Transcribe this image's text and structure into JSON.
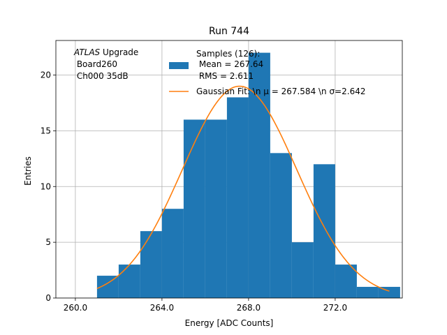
{
  "chart_data": {
    "type": "bar",
    "title": "Run 744",
    "xlabel": "Energy [ADC Counts]",
    "ylabel": "Entries",
    "xlim": [
      259.1,
      275.1
    ],
    "ylim": [
      0,
      23.1
    ],
    "grid": true,
    "xticks": [
      260.0,
      264.0,
      268.0,
      272.0
    ],
    "xtick_labels": [
      "260.0",
      "264.0",
      "268.0",
      "272.0"
    ],
    "yticks": [
      0,
      5,
      10,
      15,
      20
    ],
    "ytick_labels": [
      "0",
      "5",
      "10",
      "15",
      "20"
    ],
    "histogram": {
      "name": "Samples",
      "color": "#1f77b4",
      "bin_edges": [
        261.0,
        262.0,
        263.0,
        264.0,
        265.0,
        266.0,
        267.0,
        268.0,
        269.0,
        270.0,
        271.0,
        272.0,
        273.0,
        274.0,
        275.0
      ],
      "counts": [
        2,
        3,
        6,
        8,
        16,
        16,
        18,
        22,
        13,
        5,
        12,
        3,
        1,
        1
      ]
    },
    "fit": {
      "name": "Gaussian Fit",
      "color": "#ff7f0e",
      "mu": 267.584,
      "sigma": 2.642,
      "amplitude": 19.0,
      "x_range": [
        261.0,
        274.5
      ]
    },
    "legend": {
      "placement": "top-center",
      "entries": [
        {
          "kind": "patch",
          "color": "#1f77b4",
          "lines": [
            "Samples (126):",
            " Mean = 267.64",
            " RMS = 2.611"
          ]
        },
        {
          "kind": "line",
          "color": "#ff7f0e",
          "lines": [
            "Gaussian Fit: \\n μ = 267.584 \\n σ=2.642"
          ]
        }
      ]
    },
    "annotation": {
      "placement": "top-left",
      "italic_part": "ATLAS",
      "rest_of_first_line": " Upgrade",
      "lines": [
        " Board260",
        " Ch000 35dB"
      ]
    }
  }
}
